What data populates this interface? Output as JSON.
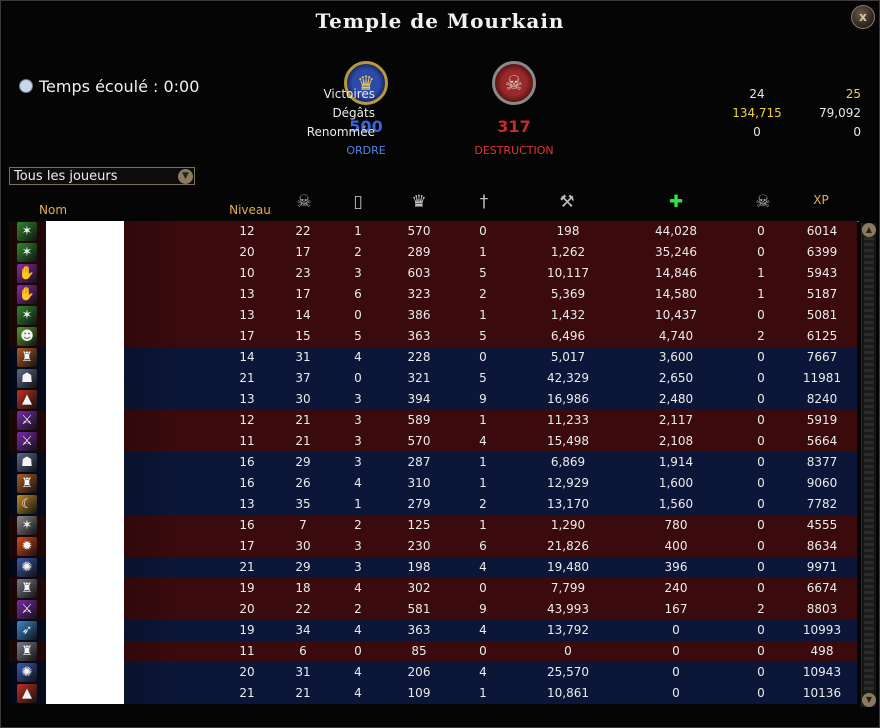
{
  "window": {
    "title": "Temple de Mourkain",
    "close_label": "x"
  },
  "timer": {
    "text": "Temps écoulé : 0:00",
    "icon": "clock-icon"
  },
  "realms": {
    "order": {
      "score": "500",
      "name": "ORDRE",
      "color": "#3b64d6",
      "icon": "eagle-emblem-icon"
    },
    "destruction": {
      "score": "317",
      "name": "DESTRUCTION",
      "color": "#c62b2b",
      "icon": "skull-emblem-icon"
    }
  },
  "stats": [
    {
      "label": "Victoires",
      "order": "24",
      "destruction": "25",
      "order_color": "#e8e8e8",
      "destruction_color": "#f0d040"
    },
    {
      "label": "Dégâts",
      "order": "134,715",
      "destruction": "79,092",
      "order_color": "#f0d040",
      "destruction_color": "#e8e8e8"
    },
    {
      "label": "Renommée",
      "order": "0",
      "destruction": "0",
      "order_color": "#e8e8e8",
      "destruction_color": "#e8e8e8"
    }
  ],
  "filter": {
    "selected": "Tous les joueurs"
  },
  "columns": {
    "name": "Nom",
    "level": "Niveau",
    "kills_icon": "skulls-kills-icon",
    "deaths_icon": "tombstone-deaths-icon",
    "renown_icon": "crown-renown-icon",
    "deathblows_icon": "dagger-deathblows-icon",
    "damage_icon": "axe-damage-icon",
    "healing_icon": "green-cross-healing-icon",
    "protection_icon": "skull-helm-protection-icon",
    "xp": "XP"
  },
  "rows": [
    {
      "realm": "destruction",
      "career_icon": "orc-claw-career-icon",
      "career_color": "#2e8a2e",
      "glyph": "✶",
      "level": "12",
      "kills": "22",
      "deaths": "1",
      "renown": "570",
      "deathblows": "0",
      "damage": "198",
      "healing": "44,028",
      "protection": "0",
      "xp": "6014"
    },
    {
      "realm": "destruction",
      "career_icon": "orc-claw-career-icon",
      "career_color": "#2e8a2e",
      "glyph": "✶",
      "level": "20",
      "kills": "17",
      "deaths": "2",
      "renown": "289",
      "deathblows": "1",
      "damage": "1,262",
      "healing": "35,246",
      "protection": "0",
      "xp": "6399"
    },
    {
      "realm": "destruction",
      "career_icon": "purple-hand-career-icon",
      "career_color": "#8a2aa8",
      "glyph": "✋",
      "level": "10",
      "kills": "23",
      "deaths": "3",
      "renown": "603",
      "deathblows": "5",
      "damage": "10,117",
      "healing": "14,846",
      "protection": "1",
      "xp": "5943"
    },
    {
      "realm": "destruction",
      "career_icon": "purple-hand-career-icon",
      "career_color": "#8a2aa8",
      "glyph": "✋",
      "level": "13",
      "kills": "17",
      "deaths": "6",
      "renown": "323",
      "deathblows": "2",
      "damage": "5,369",
      "healing": "14,580",
      "protection": "1",
      "xp": "5187"
    },
    {
      "realm": "destruction",
      "career_icon": "orc-claw-career-icon",
      "career_color": "#2e8a2e",
      "glyph": "✶",
      "level": "13",
      "kills": "14",
      "deaths": "0",
      "renown": "386",
      "deathblows": "1",
      "damage": "1,432",
      "healing": "10,437",
      "protection": "0",
      "xp": "5081"
    },
    {
      "realm": "destruction",
      "career_icon": "goblin-career-icon",
      "career_color": "#5a9a2a",
      "glyph": "☻",
      "level": "17",
      "kills": "15",
      "deaths": "5",
      "renown": "363",
      "deathblows": "5",
      "damage": "6,496",
      "healing": "4,740",
      "protection": "2",
      "xp": "6125"
    },
    {
      "realm": "order",
      "career_icon": "dwarf-helm-career-icon",
      "career_color": "#b05a2a",
      "glyph": "♜",
      "level": "14",
      "kills": "31",
      "deaths": "4",
      "renown": "228",
      "deathblows": "0",
      "damage": "5,017",
      "healing": "3,600",
      "protection": "0",
      "xp": "7667"
    },
    {
      "realm": "order",
      "career_icon": "hooded-mage-career-icon",
      "career_color": "#5a6a8a",
      "glyph": "☗",
      "level": "21",
      "kills": "37",
      "deaths": "0",
      "renown": "321",
      "deathblows": "5",
      "damage": "42,329",
      "healing": "2,650",
      "protection": "0",
      "xp": "11981"
    },
    {
      "realm": "order",
      "career_icon": "red-wizard-hat-career-icon",
      "career_color": "#c03020",
      "glyph": "▲",
      "level": "13",
      "kills": "30",
      "deaths": "3",
      "renown": "394",
      "deathblows": "9",
      "damage": "16,986",
      "healing": "2,480",
      "protection": "0",
      "xp": "8240"
    },
    {
      "realm": "destruction",
      "career_icon": "purple-blade-career-icon",
      "career_color": "#7a2ab0",
      "glyph": "⚔",
      "level": "12",
      "kills": "21",
      "deaths": "3",
      "renown": "589",
      "deathblows": "1",
      "damage": "11,233",
      "healing": "2,117",
      "protection": "0",
      "xp": "5919"
    },
    {
      "realm": "destruction",
      "career_icon": "purple-blade-career-icon",
      "career_color": "#7a2ab0",
      "glyph": "⚔",
      "level": "11",
      "kills": "21",
      "deaths": "3",
      "renown": "570",
      "deathblows": "4",
      "damage": "15,498",
      "healing": "2,108",
      "protection": "0",
      "xp": "5664"
    },
    {
      "realm": "order",
      "career_icon": "hooded-mage-career-icon",
      "career_color": "#5a6a8a",
      "glyph": "☗",
      "level": "16",
      "kills": "29",
      "deaths": "3",
      "renown": "287",
      "deathblows": "1",
      "damage": "6,869",
      "healing": "1,914",
      "protection": "0",
      "xp": "8377"
    },
    {
      "realm": "order",
      "career_icon": "dwarf-helm-career-icon",
      "career_color": "#b05a2a",
      "glyph": "♜",
      "level": "16",
      "kills": "26",
      "deaths": "4",
      "renown": "310",
      "deathblows": "1",
      "damage": "12,929",
      "healing": "1,600",
      "protection": "0",
      "xp": "9060"
    },
    {
      "realm": "order",
      "career_icon": "golden-horn-career-icon",
      "career_color": "#c08a2a",
      "glyph": "☾",
      "level": "13",
      "kills": "35",
      "deaths": "1",
      "renown": "279",
      "deathblows": "2",
      "damage": "13,170",
      "healing": "1,560",
      "protection": "0",
      "xp": "7782"
    },
    {
      "realm": "destruction",
      "career_icon": "grey-claw-career-icon",
      "career_color": "#8a8a8a",
      "glyph": "✶",
      "level": "16",
      "kills": "7",
      "deaths": "2",
      "renown": "125",
      "deathblows": "1",
      "damage": "1,290",
      "healing": "780",
      "protection": "0",
      "xp": "4555"
    },
    {
      "realm": "destruction",
      "career_icon": "fire-career-icon",
      "career_color": "#d84a1a",
      "glyph": "✹",
      "level": "17",
      "kills": "30",
      "deaths": "3",
      "renown": "230",
      "deathblows": "6",
      "damage": "21,826",
      "healing": "400",
      "protection": "0",
      "xp": "8634"
    },
    {
      "realm": "order",
      "career_icon": "blue-lion-career-icon",
      "career_color": "#3a5ab0",
      "glyph": "✺",
      "level": "21",
      "kills": "29",
      "deaths": "3",
      "renown": "198",
      "deathblows": "4",
      "damage": "19,480",
      "healing": "396",
      "protection": "0",
      "xp": "9971"
    },
    {
      "realm": "destruction",
      "career_icon": "armored-helm-career-icon",
      "career_color": "#7a7a8a",
      "glyph": "♜",
      "level": "19",
      "kills": "18",
      "deaths": "4",
      "renown": "302",
      "deathblows": "0",
      "damage": "7,799",
      "healing": "240",
      "protection": "0",
      "xp": "6674"
    },
    {
      "realm": "destruction",
      "career_icon": "purple-blade-career-icon",
      "career_color": "#7a2ab0",
      "glyph": "⚔",
      "level": "20",
      "kills": "22",
      "deaths": "2",
      "renown": "581",
      "deathblows": "9",
      "damage": "43,993",
      "healing": "167",
      "protection": "2",
      "xp": "8803"
    },
    {
      "realm": "order",
      "career_icon": "blue-sword-career-icon",
      "career_color": "#3a8ad0",
      "glyph": "➶",
      "level": "19",
      "kills": "34",
      "deaths": "4",
      "renown": "363",
      "deathblows": "4",
      "damage": "13,792",
      "healing": "0",
      "protection": "0",
      "xp": "10993"
    },
    {
      "realm": "destruction",
      "career_icon": "armored-helm-career-icon",
      "career_color": "#7a7a8a",
      "glyph": "♜",
      "level": "11",
      "kills": "6",
      "deaths": "0",
      "renown": "85",
      "deathblows": "0",
      "damage": "0",
      "healing": "0",
      "protection": "0",
      "xp": "498"
    },
    {
      "realm": "order",
      "career_icon": "blue-lion-career-icon",
      "career_color": "#3a5ab0",
      "glyph": "✺",
      "level": "20",
      "kills": "31",
      "deaths": "4",
      "renown": "206",
      "deathblows": "4",
      "damage": "25,570",
      "healing": "0",
      "protection": "0",
      "xp": "10943"
    },
    {
      "realm": "order",
      "career_icon": "red-wizard-hat-career-icon",
      "career_color": "#c03020",
      "glyph": "▲",
      "level": "21",
      "kills": "21",
      "deaths": "4",
      "renown": "109",
      "deathblows": "1",
      "damage": "10,861",
      "healing": "0",
      "protection": "0",
      "xp": "10136"
    }
  ]
}
